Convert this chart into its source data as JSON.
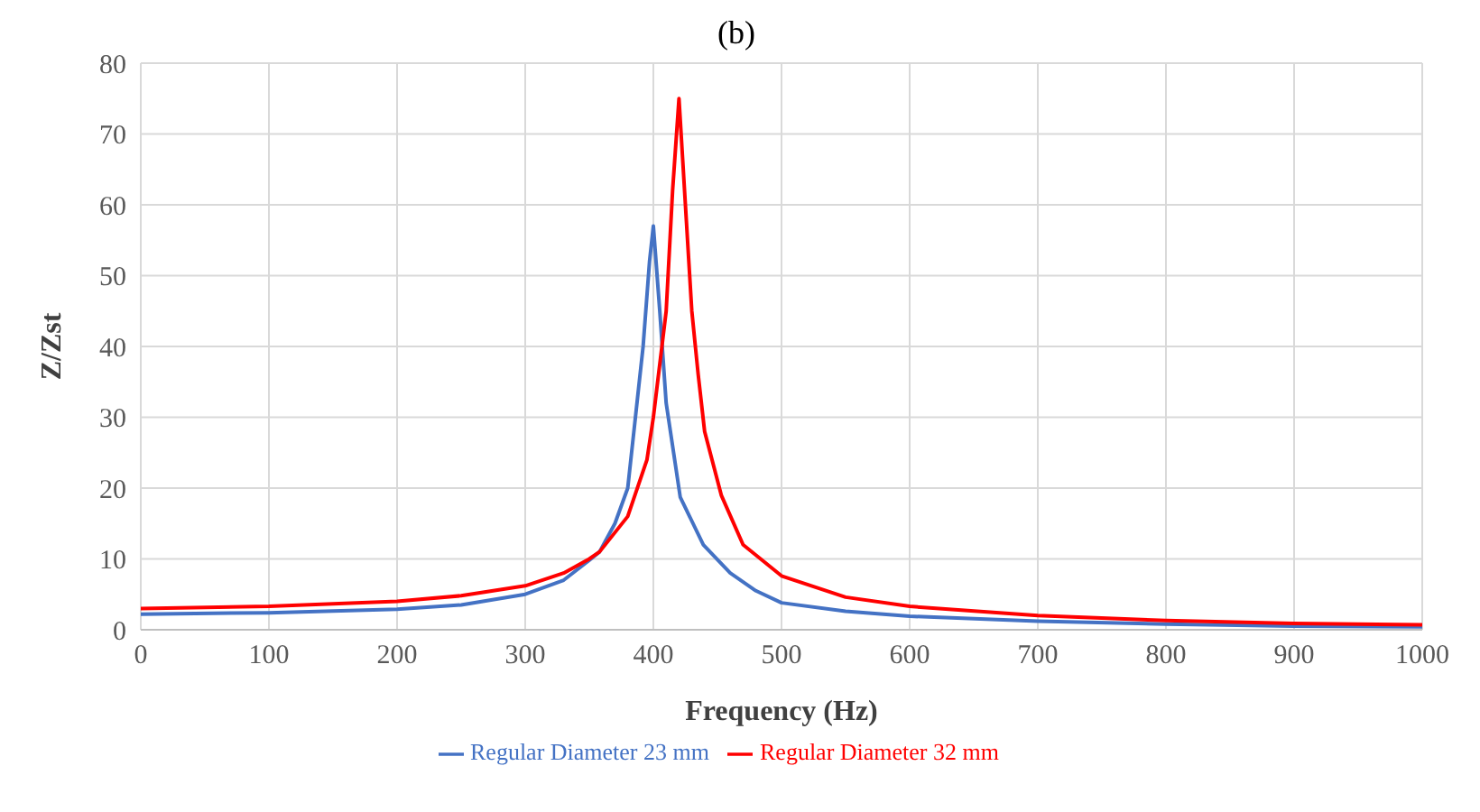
{
  "chart_data": {
    "type": "line",
    "title": "(b)",
    "xlabel": "Frequency (Hz)",
    "ylabel": "Z/Zst",
    "xlim": [
      0,
      1000
    ],
    "xticks": [
      0,
      100,
      200,
      300,
      400,
      500,
      600,
      700,
      800,
      900,
      1000
    ],
    "ylim": [
      0,
      80
    ],
    "yticks": [
      0,
      10,
      20,
      30,
      40,
      50,
      60,
      70,
      80
    ],
    "grid": true,
    "legend": "bottom",
    "marker": "none",
    "line_style": "solid",
    "series": [
      {
        "name": "Regular Diameter 23 mm",
        "color": "#4472c4",
        "x": [
          0,
          100,
          200,
          250,
          300,
          330,
          350,
          358,
          370,
          380,
          392,
          397,
          400,
          405,
          410,
          421,
          439,
          460,
          480,
          500,
          550,
          600,
          700,
          800,
          900,
          1000
        ],
        "values": [
          2.2,
          2.4,
          2.9,
          3.5,
          5,
          7,
          9.8,
          11,
          15,
          20,
          40,
          52,
          57,
          45,
          32,
          18.7,
          12,
          8,
          5.5,
          3.8,
          2.6,
          1.9,
          1.2,
          0.8,
          0.5,
          0.4
        ]
      },
      {
        "name": "Regular Diameter 32 mm",
        "color": "#ff0000",
        "x": [
          0,
          100,
          200,
          250,
          300,
          330,
          350,
          358,
          380,
          395,
          400,
          410,
          415,
          420,
          425,
          430,
          435,
          440,
          453,
          470,
          500,
          550,
          600,
          700,
          800,
          900,
          1000
        ],
        "values": [
          3,
          3.3,
          4,
          4.8,
          6.2,
          8,
          10,
          11,
          16,
          24,
          30,
          45,
          62,
          75,
          60,
          45,
          36,
          28,
          19,
          12,
          7.6,
          4.6,
          3.3,
          2,
          1.3,
          0.9,
          0.7
        ]
      }
    ]
  }
}
